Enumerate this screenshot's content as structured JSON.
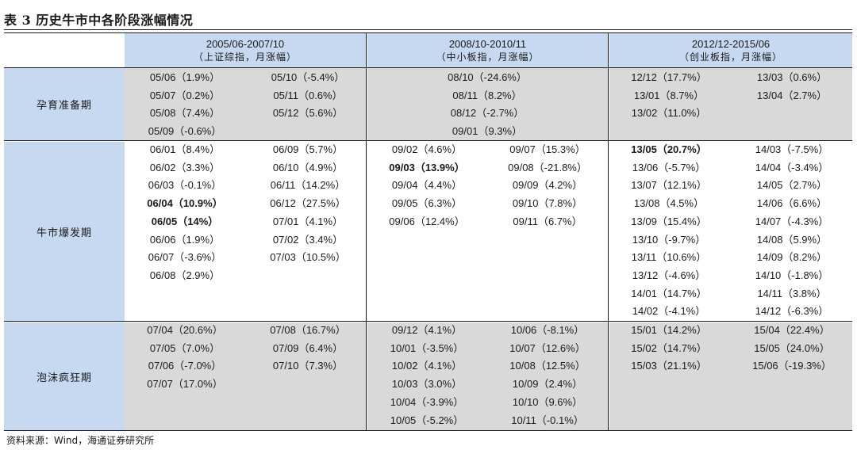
{
  "title": "表 3 历史牛市中各阶段涨幅情况",
  "periods": [
    {
      "range": "2005/06-2007/10",
      "index": "（上证综指，月涨幅）"
    },
    {
      "range": "2008/10-2010/11",
      "index": "（中小板指，月涨幅）"
    },
    {
      "range": "2012/12-2015/06",
      "index": "（创业板指，月涨幅）"
    }
  ],
  "stages": [
    "孕育准备期",
    "牛市爆发期",
    "泡沫疯狂期"
  ],
  "cells": {
    "s0": {
      "p0": {
        "a": [
          "05/06（1.9%）",
          "05/07（0.2%）",
          "05/08（7.4%）",
          "05/09（-0.6%）"
        ],
        "b": [
          "05/10（-5.4%）",
          "05/11（0.6%）",
          "05/12（5.6%）"
        ]
      },
      "p1": {
        "c": [
          "08/10（-24.6%）",
          "08/11（8.2%）",
          "08/12（-2.7%）",
          "09/01（9.3%）"
        ]
      },
      "p2": {
        "a": [
          "12/12（17.7%）",
          "13/01（8.7%）",
          "13/02（11.0%）"
        ],
        "b": [
          "13/03（0.6%）",
          "13/04（2.7%）"
        ]
      }
    },
    "s1": {
      "p0": {
        "a": [
          "06/01（8.4%）",
          "06/02（3.3%）",
          "06/03（-0.1%）",
          "06/04（10.9%）",
          "06/05（14%）",
          "06/06（1.9%）",
          "06/07（-3.6%）",
          "06/08（2.9%）"
        ],
        "b": [
          "06/09（5.7%）",
          "06/10（4.9%）",
          "06/11（14.2%）",
          "06/12（27.5%）",
          "07/01（4.1%）",
          "07/02（3.4%）",
          "07/03（10.5%）"
        ]
      },
      "p1": {
        "a": [
          "09/02（4.6%）",
          "09/03（13.9%）",
          "09/04（4.4%）",
          "09/05（6.3%）",
          "09/06（12.4%）"
        ],
        "b": [
          "09/07（15.3%）",
          "09/08（-21.8%）",
          "09/09（4.2%）",
          "09/10（7.8%）",
          "09/11（6.7%）"
        ]
      },
      "p2": {
        "a": [
          "13/05（20.7%）",
          "13/06（-5.7%）",
          "13/07（12.1%）",
          "13/08（4.5%）",
          "13/09（15.4%）",
          "13/10（-9.7%）",
          "13/11（10.6%）",
          "13/12（-4.6%）",
          "14/01（14.7%）",
          "14/02（-4.1%）"
        ],
        "b": [
          "14/03（-7.5%）",
          "14/04（-3.4%）",
          "14/05（2.7%）",
          "14/06（6.6%）",
          "14/07（-4.3%）",
          "14/08（5.9%）",
          "14/09（8.2%）",
          "14/10（-1.8%）",
          "14/11（3.8%）",
          "14/12（-6.3%）"
        ]
      }
    },
    "s2": {
      "p0": {
        "a": [
          "07/04（20.6%）",
          "07/05（7.0%）",
          "07/06（-7.0%）",
          "07/07（17.0%）"
        ],
        "b": [
          "07/08（16.7%）",
          "07/09（6.4%）",
          "07/10（7.3%）"
        ]
      },
      "p1": {
        "a": [
          "09/12（4.1%）",
          "10/01（-3.5%）",
          "10/02（4.1%）",
          "10/03（3.0%）",
          "10/04（-3.9%）",
          "10/05（-5.2%）"
        ],
        "b": [
          "10/06（-8.1%）",
          "10/07（12.6%）",
          "10/08（12.5%）",
          "10/09（2.4%）",
          "10/10（9.6%）",
          "10/11（-0.1%）"
        ]
      },
      "p2": {
        "a": [
          "15/01（14.2%）",
          "15/02（14.7%）",
          "15/03（21.1%）"
        ],
        "b": [
          "15/04（22.4%）",
          "15/05（24.0%）",
          "15/06（-19.3%）"
        ]
      }
    }
  },
  "highlights": [
    "06/04（10.9%）",
    "06/05（14%）",
    "09/03（13.9%）",
    "13/05（20.7%）"
  ],
  "source": "资料来源：Wind，海通证券研究所"
}
